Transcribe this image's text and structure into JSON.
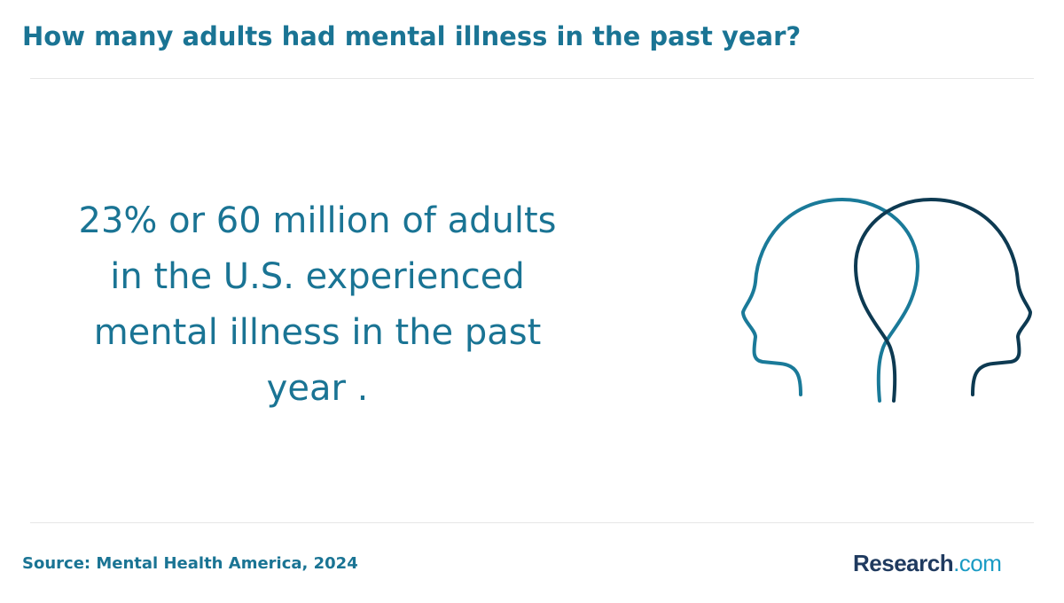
{
  "header": {
    "title": "How many adults had mental illness in the past year?"
  },
  "body": {
    "statement_lines": [
      "23% or 60 million of adults",
      "in the U.S. experienced",
      "mental illness in the past",
      "year ."
    ]
  },
  "footer": {
    "source": "Source: Mental Health America, 2024",
    "logo": {
      "name": "Research",
      "suffix": ".com"
    }
  }
}
